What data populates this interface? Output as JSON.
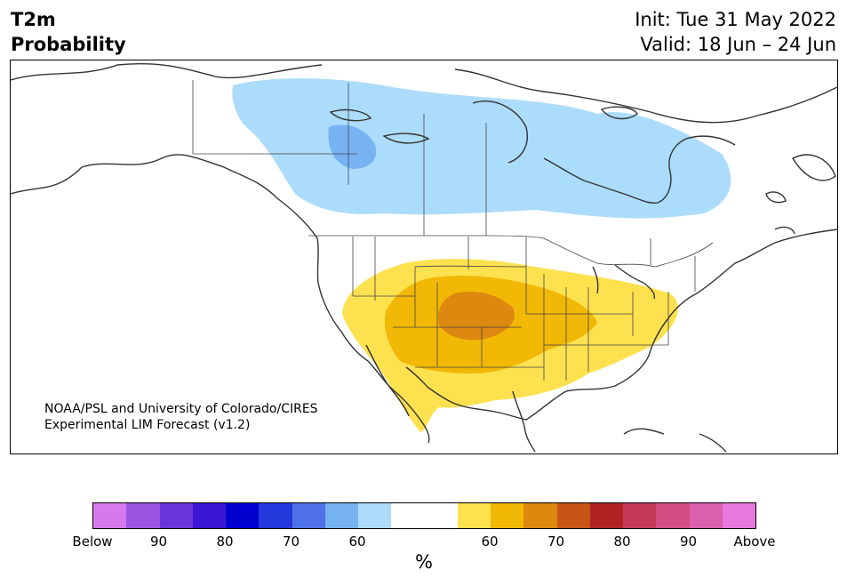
{
  "title": {
    "line1": "T2m",
    "line2": "Probability"
  },
  "dates": {
    "init": "Init: Tue 31 May 2022",
    "valid": "Valid: 18 Jun – 24 Jun"
  },
  "credit": {
    "line1": "NOAA/PSL and University of Colorado/CIRES",
    "line2": "Experimental LIM Forecast (v1.2)"
  },
  "colors": {
    "below_60": "#acdcfb",
    "below_70": "#77b2f3",
    "above_60": "#fee14f",
    "above_70": "#f2b806",
    "above_80": "#dd880f",
    "coast": "#333333",
    "border": "#444444"
  },
  "colorbar": {
    "colors": [
      "#d57aec",
      "#9b55e2",
      "#6a35d9",
      "#3a17d4",
      "#0000cf",
      "#2438db",
      "#4f72e8",
      "#77b2f3",
      "#acdcfb",
      "#ffffff",
      "#ffffff",
      "#fee14f",
      "#f2b806",
      "#dd880f",
      "#c75616",
      "#b12323",
      "#c43a58",
      "#d24e83",
      "#db60ae",
      "#e779dc"
    ],
    "tick_labels": [
      "Below",
      "90",
      "80",
      "70",
      "60",
      "60",
      "70",
      "80",
      "90",
      "Above"
    ],
    "unit": "%"
  }
}
